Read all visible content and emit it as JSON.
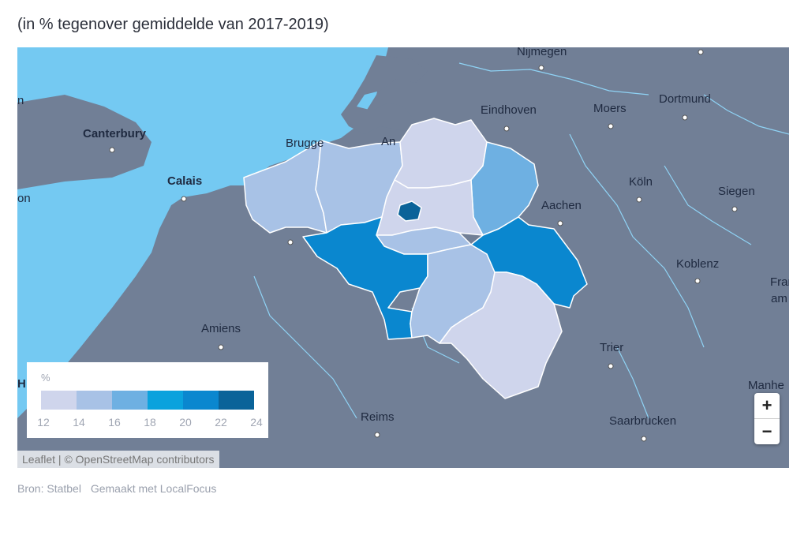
{
  "subtitle": "(in % tegenover gemiddelde van 2017-2019)",
  "map": {
    "cities": [
      {
        "name": "Nijmegen",
        "bold": false
      },
      {
        "name": "Eindhoven",
        "bold": false
      },
      {
        "name": "Moers",
        "bold": false
      },
      {
        "name": "Dortmund",
        "bold": false
      },
      {
        "name": "Canterbury",
        "bold": true
      },
      {
        "name": "Calais",
        "bold": true
      },
      {
        "name": "Köln",
        "bold": false
      },
      {
        "name": "Siegen",
        "bold": false
      },
      {
        "name": "Aachen",
        "bold": false
      },
      {
        "name": "Koblenz",
        "bold": false
      },
      {
        "name": "Amiens",
        "bold": false
      },
      {
        "name": "Trier",
        "bold": false
      },
      {
        "name": "Reims",
        "bold": false
      },
      {
        "name": "Saarbrücken",
        "bold": false
      },
      {
        "name": "Manhe",
        "bold": false
      },
      {
        "name": "Fran",
        "bold": false
      },
      {
        "name": "am",
        "bold": false
      },
      {
        "name": "Brugge",
        "bold": false
      },
      {
        "name": "An",
        "bold": false
      },
      {
        "name": "n",
        "bold": false
      },
      {
        "name": "on",
        "bold": false
      },
      {
        "name": "H",
        "bold": false
      }
    ],
    "colors": {
      "land": "#717f96",
      "sea": "#74c9f2",
      "c12_14": "#cfd5ec",
      "c14_16": "#a8c2e6",
      "c16_18": "#6eb0e2",
      "c20_22": "#0a87cf",
      "c22_24": "#0a6399"
    }
  },
  "legend": {
    "unit": "%",
    "ticks": [
      "12",
      "14",
      "16",
      "18",
      "20",
      "22",
      "24"
    ],
    "colors": [
      "#cfd5ec",
      "#a8c2e6",
      "#6eb0e2",
      "#0aa2dd",
      "#0a87cf",
      "#0a6399"
    ]
  },
  "zoom": {
    "in_label": "+",
    "out_label": "−"
  },
  "attribution": "Leaflet | © OpenStreetMap contributors",
  "source": {
    "source_text": "Bron: Statbel",
    "made_with": "Gemaakt met LocalFocus"
  }
}
